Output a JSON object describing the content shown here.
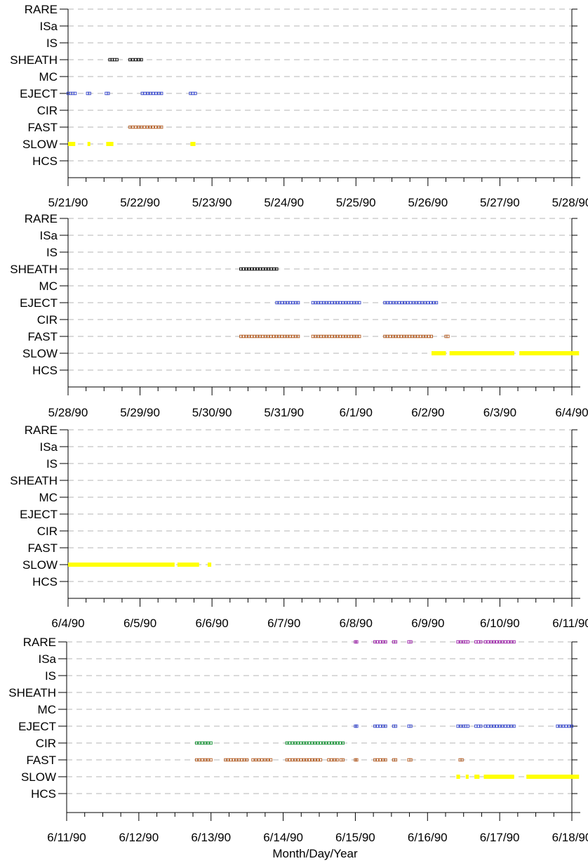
{
  "figure": {
    "xlabel": "Month/Day/Year",
    "categories": [
      "RARE",
      "ISa",
      "IS",
      "SHEATH",
      "MC",
      "EJECT",
      "CIR",
      "FAST",
      "SLOW",
      "HCS"
    ],
    "colors": {
      "SHEATH": "#000000",
      "EJECT": "#3344cc",
      "FAST": "#b35a1f",
      "SLOW": "#ffff00",
      "CIR": "#109030",
      "RARE": "#9b1fa8",
      "grid": "#b4b4b4"
    }
  },
  "chart_data": [
    {
      "type": "scatter",
      "xlim": [
        "5/21/90",
        "5/28/90"
      ],
      "xticks": [
        "5/21/90",
        "5/22/90",
        "5/23/90",
        "5/24/90",
        "5/25/90",
        "5/26/90",
        "5/27/90",
        "5/28/90"
      ],
      "series": [
        {
          "name": "SHEATH",
          "segments": [
            [
              0.58,
              0.68
            ],
            [
              0.86,
              1.02
            ]
          ]
        },
        {
          "name": "EJECT",
          "segments": [
            [
              0.0,
              0.1
            ],
            [
              0.27,
              0.3
            ],
            [
              0.53,
              0.56
            ],
            [
              1.03,
              1.3
            ],
            [
              1.7,
              1.77
            ]
          ]
        },
        {
          "name": "FAST",
          "segments": [
            [
              0.86,
              1.3
            ]
          ]
        },
        {
          "name": "SLOW",
          "segments": [
            [
              0.0,
              0.1
            ],
            [
              0.27,
              0.3
            ],
            [
              0.53,
              0.63
            ],
            [
              1.7,
              1.77
            ]
          ]
        }
      ]
    },
    {
      "type": "scatter",
      "xlim": [
        "5/28/90",
        "6/4/90"
      ],
      "xticks": [
        "5/28/90",
        "5/29/90",
        "5/30/90",
        "5/31/90",
        "6/1/90",
        "6/2/90",
        "6/3/90",
        "6/4/90"
      ],
      "series": [
        {
          "name": "SHEATH",
          "segments": [
            [
              2.4,
              2.9
            ]
          ]
        },
        {
          "name": "EJECT",
          "segments": [
            [
              2.9,
              3.2
            ],
            [
              3.4,
              4.05
            ],
            [
              4.4,
              5.12
            ]
          ]
        },
        {
          "name": "FAST",
          "segments": [
            [
              2.4,
              3.2
            ],
            [
              3.4,
              4.05
            ],
            [
              4.4,
              5.05
            ],
            [
              5.25,
              5.28
            ]
          ]
        },
        {
          "name": "SLOW",
          "segments": [
            [
              5.05,
              5.25
            ],
            [
              5.3,
              6.2
            ],
            [
              6.27,
              7.1
            ]
          ]
        }
      ]
    },
    {
      "type": "scatter",
      "xlim": [
        "6/4/90",
        "6/11/90"
      ],
      "xticks": [
        "6/4/90",
        "6/5/90",
        "6/6/90",
        "6/7/90",
        "6/8/90",
        "6/9/90",
        "6/10/90",
        "6/11/90"
      ],
      "series": [
        {
          "name": "SLOW",
          "segments": [
            [
              0.0,
              1.48
            ],
            [
              1.52,
              1.82
            ],
            [
              1.94,
              1.99
            ]
          ]
        }
      ]
    },
    {
      "type": "scatter",
      "xlim": [
        "6/11/90",
        "6/18/90"
      ],
      "xticks": [
        "6/11/90",
        "6/12/90",
        "6/13/90",
        "6/14/90",
        "6/15/90",
        "6/16/90",
        "6/17/90",
        "6/18/90"
      ],
      "series": [
        {
          "name": "RARE",
          "segments": [
            [
              4.0,
              4.02
            ],
            [
              4.27,
              4.42
            ],
            [
              4.53,
              4.56
            ],
            [
              4.74,
              4.77
            ],
            [
              5.42,
              5.5
            ],
            [
              5.53,
              5.56
            ],
            [
              5.67,
              5.74
            ],
            [
              5.8,
              6.2
            ]
          ]
        },
        {
          "name": "EJECT",
          "segments": [
            [
              4.0,
              4.02
            ],
            [
              4.27,
              4.42
            ],
            [
              4.53,
              4.56
            ],
            [
              4.74,
              4.77
            ],
            [
              5.42,
              5.5
            ],
            [
              5.53,
              5.56
            ],
            [
              5.67,
              5.74
            ],
            [
              5.8,
              6.2
            ],
            [
              6.8,
              7.0
            ]
          ]
        },
        {
          "name": "CIR",
          "segments": [
            [
              1.8,
              2.0
            ],
            [
              3.05,
              3.83
            ]
          ]
        },
        {
          "name": "FAST",
          "segments": [
            [
              1.8,
              2.0
            ],
            [
              2.2,
              2.5
            ],
            [
              2.58,
              2.83
            ],
            [
              3.05,
              3.52
            ],
            [
              3.63,
              3.75
            ],
            [
              3.8,
              3.83
            ],
            [
              4.0,
              4.02
            ],
            [
              4.27,
              4.42
            ],
            [
              4.53,
              4.56
            ],
            [
              4.74,
              4.77
            ],
            [
              5.45,
              5.48
            ]
          ]
        },
        {
          "name": "SLOW",
          "segments": [
            [
              5.4,
              5.45
            ],
            [
              5.53,
              5.57
            ],
            [
              5.65,
              5.72
            ],
            [
              5.78,
              6.2
            ],
            [
              6.37,
              7.1
            ]
          ]
        }
      ]
    }
  ]
}
